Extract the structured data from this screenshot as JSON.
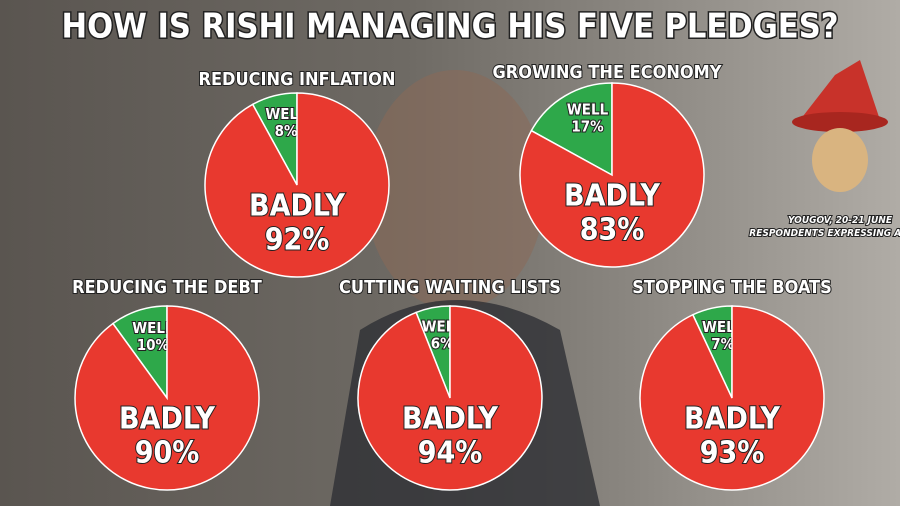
{
  "title": "HOW IS RISHI MANAGING HIS FIVE PLEDGES?",
  "source": [
    "YOUGOV, 20-21 JUNE",
    "RESPONDENTS EXPRESSING A VIEW"
  ],
  "chart_data": [
    {
      "type": "pie",
      "title": "REDUCING INFLATION",
      "categories": [
        "WELL",
        "BADLY"
      ],
      "values": [
        8,
        92
      ],
      "value_labels": [
        "8%",
        "92%"
      ],
      "colors": [
        "#2ea84a",
        "#e8392f"
      ]
    },
    {
      "type": "pie",
      "title": "GROWING THE ECONOMY",
      "categories": [
        "WELL",
        "BADLY"
      ],
      "values": [
        17,
        83
      ],
      "value_labels": [
        "17%",
        "83%"
      ],
      "colors": [
        "#2ea84a",
        "#e8392f"
      ]
    },
    {
      "type": "pie",
      "title": "REDUCING THE DEBT",
      "categories": [
        "WELL",
        "BADLY"
      ],
      "values": [
        10,
        90
      ],
      "value_labels": [
        "10%",
        "90%"
      ],
      "colors": [
        "#2ea84a",
        "#e8392f"
      ]
    },
    {
      "type": "pie",
      "title": "CUTTING WAITING LISTS",
      "categories": [
        "WELL",
        "BADLY"
      ],
      "values": [
        6,
        94
      ],
      "value_labels": [
        "6%",
        "94%"
      ],
      "colors": [
        "#2ea84a",
        "#e8392f"
      ]
    },
    {
      "type": "pie",
      "title": "STOPPING THE BOATS",
      "categories": [
        "WELL",
        "BADLY"
      ],
      "values": [
        7,
        93
      ],
      "value_labels": [
        "7%",
        "93%"
      ],
      "colors": [
        "#2ea84a",
        "#e8392f"
      ]
    }
  ]
}
